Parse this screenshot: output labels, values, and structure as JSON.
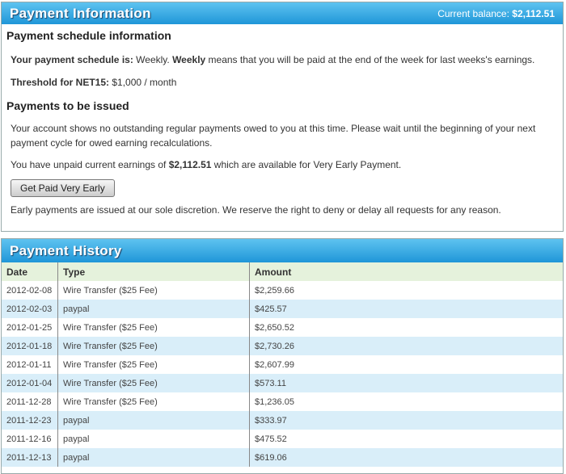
{
  "info": {
    "title": "Payment Information",
    "balance_label": "Current balance:",
    "balance": "$2,112.51",
    "schedule_heading": "Payment schedule information",
    "schedule_label": "Your payment schedule is:",
    "schedule_value": " Weekly. ",
    "schedule_bold": "Weekly",
    "schedule_text": " means that you will be paid at the end of the week for last weeks's earnings.",
    "threshold_label": "Threshold for NET15:",
    "threshold_value": " $1,000 / month",
    "issued_heading": "Payments to be issued",
    "outstanding_text": "Your account shows no outstanding regular payments owed to you at this time. Please wait until the beginning of your next payment cycle for owed earning recalculations.",
    "unpaid_pre": "You have unpaid current earnings of ",
    "unpaid_amount": "$2,112.51",
    "unpaid_post": " which are available for Very Early Payment.",
    "button": "Get Paid Very Early",
    "disclaimer": "Early payments are issued at our sole discretion. We reserve the right to deny or delay all requests for any reason."
  },
  "history": {
    "title": "Payment History",
    "columns": [
      "Date",
      "Type",
      "Amount"
    ],
    "rows": [
      [
        "2012-02-08",
        "Wire Transfer ($25 Fee)",
        "$2,259.66"
      ],
      [
        "2012-02-03",
        "paypal",
        "$425.57"
      ],
      [
        "2012-01-25",
        "Wire Transfer ($25 Fee)",
        "$2,650.52"
      ],
      [
        "2012-01-18",
        "Wire Transfer ($25 Fee)",
        "$2,730.26"
      ],
      [
        "2012-01-11",
        "Wire Transfer ($25 Fee)",
        "$2,607.99"
      ],
      [
        "2012-01-04",
        "Wire Transfer ($25 Fee)",
        "$573.11"
      ],
      [
        "2011-12-28",
        "Wire Transfer ($25 Fee)",
        "$1,236.05"
      ],
      [
        "2011-12-23",
        "paypal",
        "$333.97"
      ],
      [
        "2011-12-16",
        "paypal",
        "$475.52"
      ],
      [
        "2011-12-13",
        "paypal",
        "$619.06"
      ]
    ]
  }
}
